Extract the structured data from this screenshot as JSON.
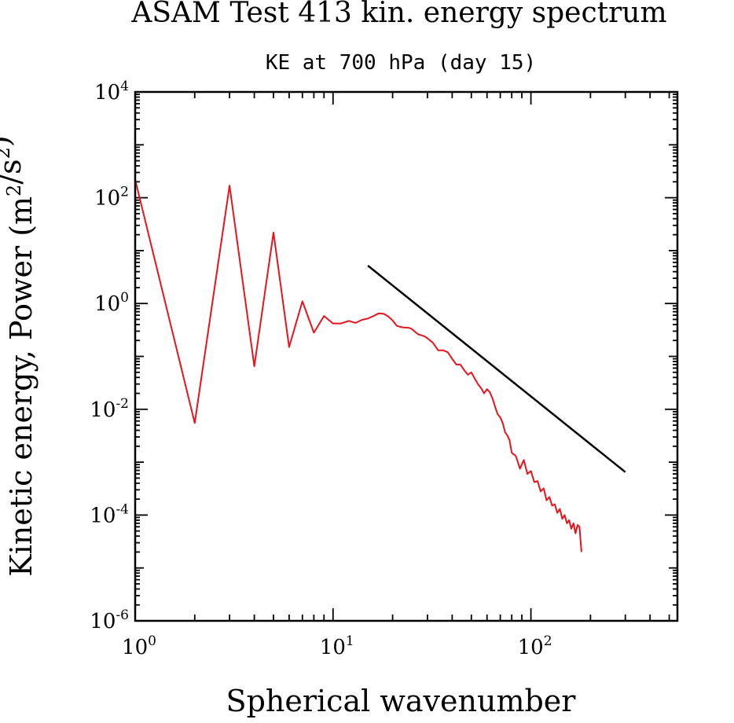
{
  "chart_data": {
    "type": "line",
    "title": "ASAM Test 413 kin. energy spectrum",
    "subtitle": "KE at 700 hPa (day 15)",
    "xlabel": "Spherical wavenumber",
    "ylabel": "Kinetic energy, Power (m²/s²)",
    "xscale": "log",
    "yscale": "log",
    "xlim": [
      1,
      550
    ],
    "ylim": [
      1e-06,
      10000
    ],
    "grid": false,
    "x_ticks": [
      {
        "base": "10",
        "exp": "0",
        "value": 1
      },
      {
        "base": "10",
        "exp": "1",
        "value": 10
      },
      {
        "base": "10",
        "exp": "2",
        "value": 100
      }
    ],
    "y_ticks": [
      {
        "base": "10",
        "exp": "4",
        "value": 10000
      },
      {
        "base": "10",
        "exp": "2",
        "value": 100
      },
      {
        "base": "10",
        "exp": "0",
        "value": 1
      },
      {
        "base": "10",
        "exp": "-2",
        "value": 0.01
      },
      {
        "base": "10",
        "exp": "-4",
        "value": 0.0001
      },
      {
        "base": "10",
        "exp": "-6",
        "value": 1e-06
      }
    ],
    "series": [
      {
        "color": "#e8141c",
        "x": [
          1,
          2,
          3,
          4,
          5,
          6,
          7,
          8,
          9,
          10,
          11,
          12,
          13,
          14,
          15,
          16,
          17,
          18,
          19,
          20,
          21,
          22,
          23,
          24,
          25,
          26,
          27,
          28,
          29,
          30,
          32,
          34,
          36,
          38,
          40,
          42,
          44,
          46,
          48,
          50,
          52,
          54,
          56,
          58,
          60,
          62,
          64,
          66,
          68,
          70,
          72,
          74,
          76,
          78,
          80,
          84,
          88,
          92,
          96,
          100,
          104,
          108,
          112,
          116,
          120,
          124,
          128,
          132,
          136,
          140,
          144,
          148,
          152,
          156,
          160,
          164,
          168,
          172,
          176,
          178,
          180
        ],
        "y": [
          220,
          0.0055,
          170,
          0.065,
          22,
          0.15,
          1.1,
          0.28,
          0.58,
          0.42,
          0.42,
          0.47,
          0.43,
          0.49,
          0.52,
          0.58,
          0.65,
          0.64,
          0.57,
          0.48,
          0.38,
          0.36,
          0.35,
          0.35,
          0.33,
          0.29,
          0.26,
          0.25,
          0.24,
          0.22,
          0.18,
          0.13,
          0.13,
          0.12,
          0.09,
          0.07,
          0.07,
          0.055,
          0.045,
          0.05,
          0.038,
          0.03,
          0.025,
          0.02,
          0.024,
          0.021,
          0.016,
          0.011,
          0.008,
          0.007,
          0.0055,
          0.0037,
          0.0032,
          0.0026,
          0.0015,
          0.0013,
          0.00075,
          0.0011,
          0.0006,
          0.00068,
          0.00042,
          0.00044,
          0.00028,
          0.00032,
          0.00019,
          0.00022,
          0.00015,
          0.00016,
          0.00011,
          0.00013,
          8.5e-05,
          0.0001,
          7e-05,
          8e-05,
          5.5e-05,
          7e-05,
          4.5e-05,
          6.5e-05,
          6e-05,
          3.5e-05,
          2e-05
        ]
      },
      {
        "color": "#000000",
        "x": [
          15,
          300
        ],
        "y": [
          5.2,
          0.00065
        ]
      }
    ]
  }
}
